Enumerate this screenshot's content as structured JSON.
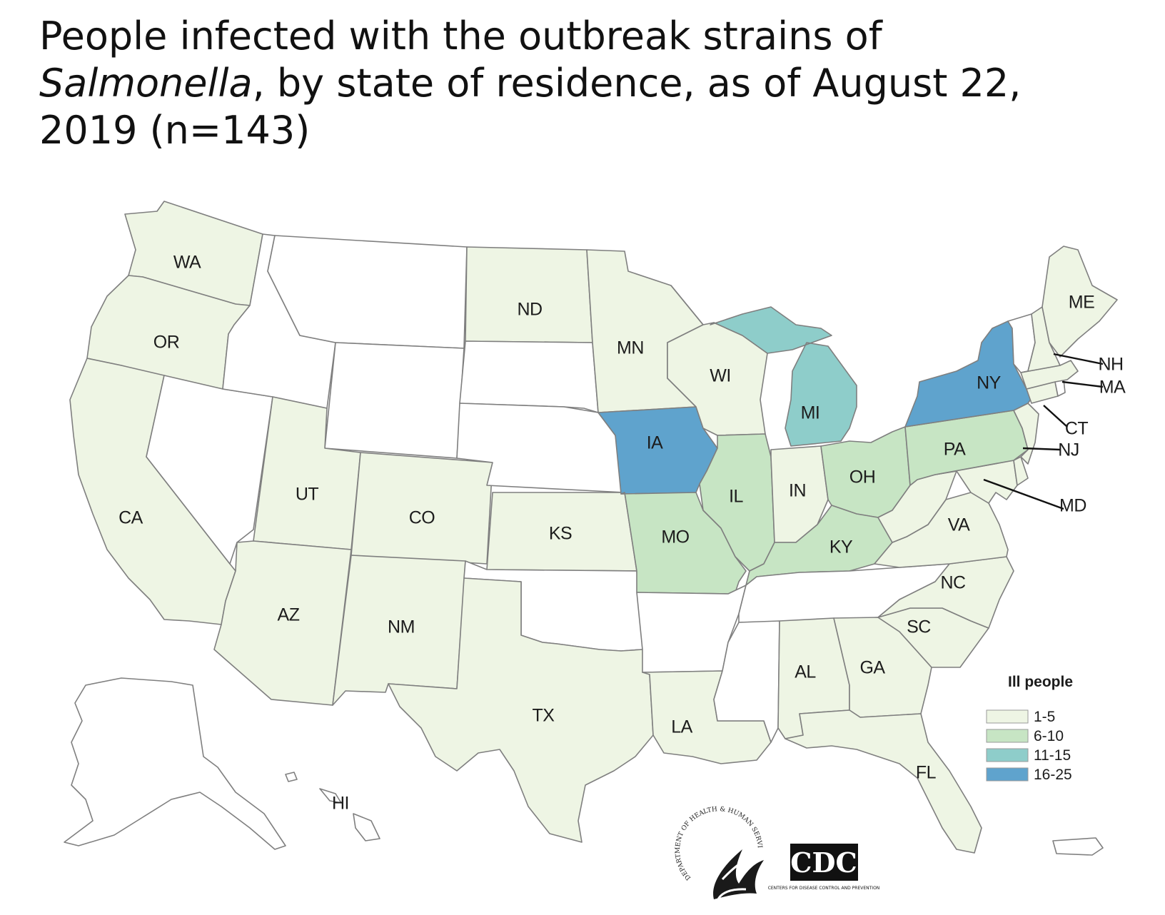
{
  "title": {
    "line1": "People infected with the outbreak strains of",
    "italic": "Salmonella",
    "line2_rest": ", by state of residence, as of August 22,",
    "line3": "2019 (n=143)"
  },
  "colors": {
    "none": "#ffffff",
    "1-5": "#eef5e4",
    "6-10": "#c7e5c4",
    "11-15": "#8ecdca",
    "16-25": "#5fa3cd",
    "border": "#7f7f7f"
  },
  "states": {
    "WA": {
      "label": "WA",
      "category": "1-5"
    },
    "OR": {
      "label": "OR",
      "category": "1-5"
    },
    "CA": {
      "label": "CA",
      "category": "1-5"
    },
    "NV": {
      "label": "",
      "category": "none"
    },
    "ID": {
      "label": "",
      "category": "none"
    },
    "MT": {
      "label": "",
      "category": "none"
    },
    "WY": {
      "label": "",
      "category": "none"
    },
    "UT": {
      "label": "UT",
      "category": "1-5"
    },
    "AZ": {
      "label": "AZ",
      "category": "1-5"
    },
    "CO": {
      "label": "CO",
      "category": "1-5"
    },
    "NM": {
      "label": "NM",
      "category": "1-5"
    },
    "ND": {
      "label": "ND",
      "category": "1-5"
    },
    "SD": {
      "label": "",
      "category": "none"
    },
    "NE": {
      "label": "",
      "category": "none"
    },
    "KS": {
      "label": "KS",
      "category": "1-5"
    },
    "OK": {
      "label": "",
      "category": "none"
    },
    "TX": {
      "label": "TX",
      "category": "1-5"
    },
    "MN": {
      "label": "MN",
      "category": "1-5"
    },
    "IA": {
      "label": "IA",
      "category": "16-25"
    },
    "MO": {
      "label": "MO",
      "category": "6-10"
    },
    "AR": {
      "label": "",
      "category": "none"
    },
    "LA": {
      "label": "LA",
      "category": "1-5"
    },
    "WI": {
      "label": "WI",
      "category": "1-5"
    },
    "IL": {
      "label": "IL",
      "category": "6-10"
    },
    "MI": {
      "label": "MI",
      "category": "11-15"
    },
    "IN": {
      "label": "IN",
      "category": "1-5"
    },
    "OH": {
      "label": "OH",
      "category": "6-10"
    },
    "KY": {
      "label": "KY",
      "category": "6-10"
    },
    "TN": {
      "label": "",
      "category": "none"
    },
    "MS": {
      "label": "",
      "category": "none"
    },
    "AL": {
      "label": "AL",
      "category": "1-5"
    },
    "GA": {
      "label": "GA",
      "category": "1-5"
    },
    "FL": {
      "label": "FL",
      "category": "1-5"
    },
    "SC": {
      "label": "SC",
      "category": "1-5"
    },
    "NC": {
      "label": "NC",
      "category": "1-5"
    },
    "VA": {
      "label": "VA",
      "category": "1-5"
    },
    "WV": {
      "label": "",
      "category": "1-5"
    },
    "MD": {
      "label": "MD",
      "category": "1-5"
    },
    "DE": {
      "label": "",
      "category": "1-5"
    },
    "PA": {
      "label": "PA",
      "category": "6-10"
    },
    "NJ": {
      "label": "NJ",
      "category": "1-5"
    },
    "NY": {
      "label": "NY",
      "category": "16-25"
    },
    "CT": {
      "label": "CT",
      "category": "1-5"
    },
    "RI": {
      "label": "",
      "category": "none"
    },
    "MA": {
      "label": "MA",
      "category": "1-5"
    },
    "VT": {
      "label": "",
      "category": "none"
    },
    "NH": {
      "label": "NH",
      "category": "1-5"
    },
    "ME": {
      "label": "ME",
      "category": "1-5"
    },
    "AK": {
      "label": "",
      "category": "none"
    },
    "HI": {
      "label": "HI",
      "category": "none"
    },
    "PR": {
      "label": "",
      "category": "none"
    }
  },
  "legend": {
    "title": "Ill people",
    "items": [
      {
        "label": "1-5",
        "category": "1-5"
      },
      {
        "label": "6-10",
        "category": "6-10"
      },
      {
        "label": "11-15",
        "category": "11-15"
      },
      {
        "label": "16-25",
        "category": "16-25"
      }
    ]
  },
  "logos": {
    "hhs_text": "DEPARTMENT OF HEALTH & HUMAN SERVICES·USA",
    "cdc_text": "CDC",
    "cdc_subtext": "CENTERS FOR DISEASE CONTROL AND PREVENTION"
  }
}
